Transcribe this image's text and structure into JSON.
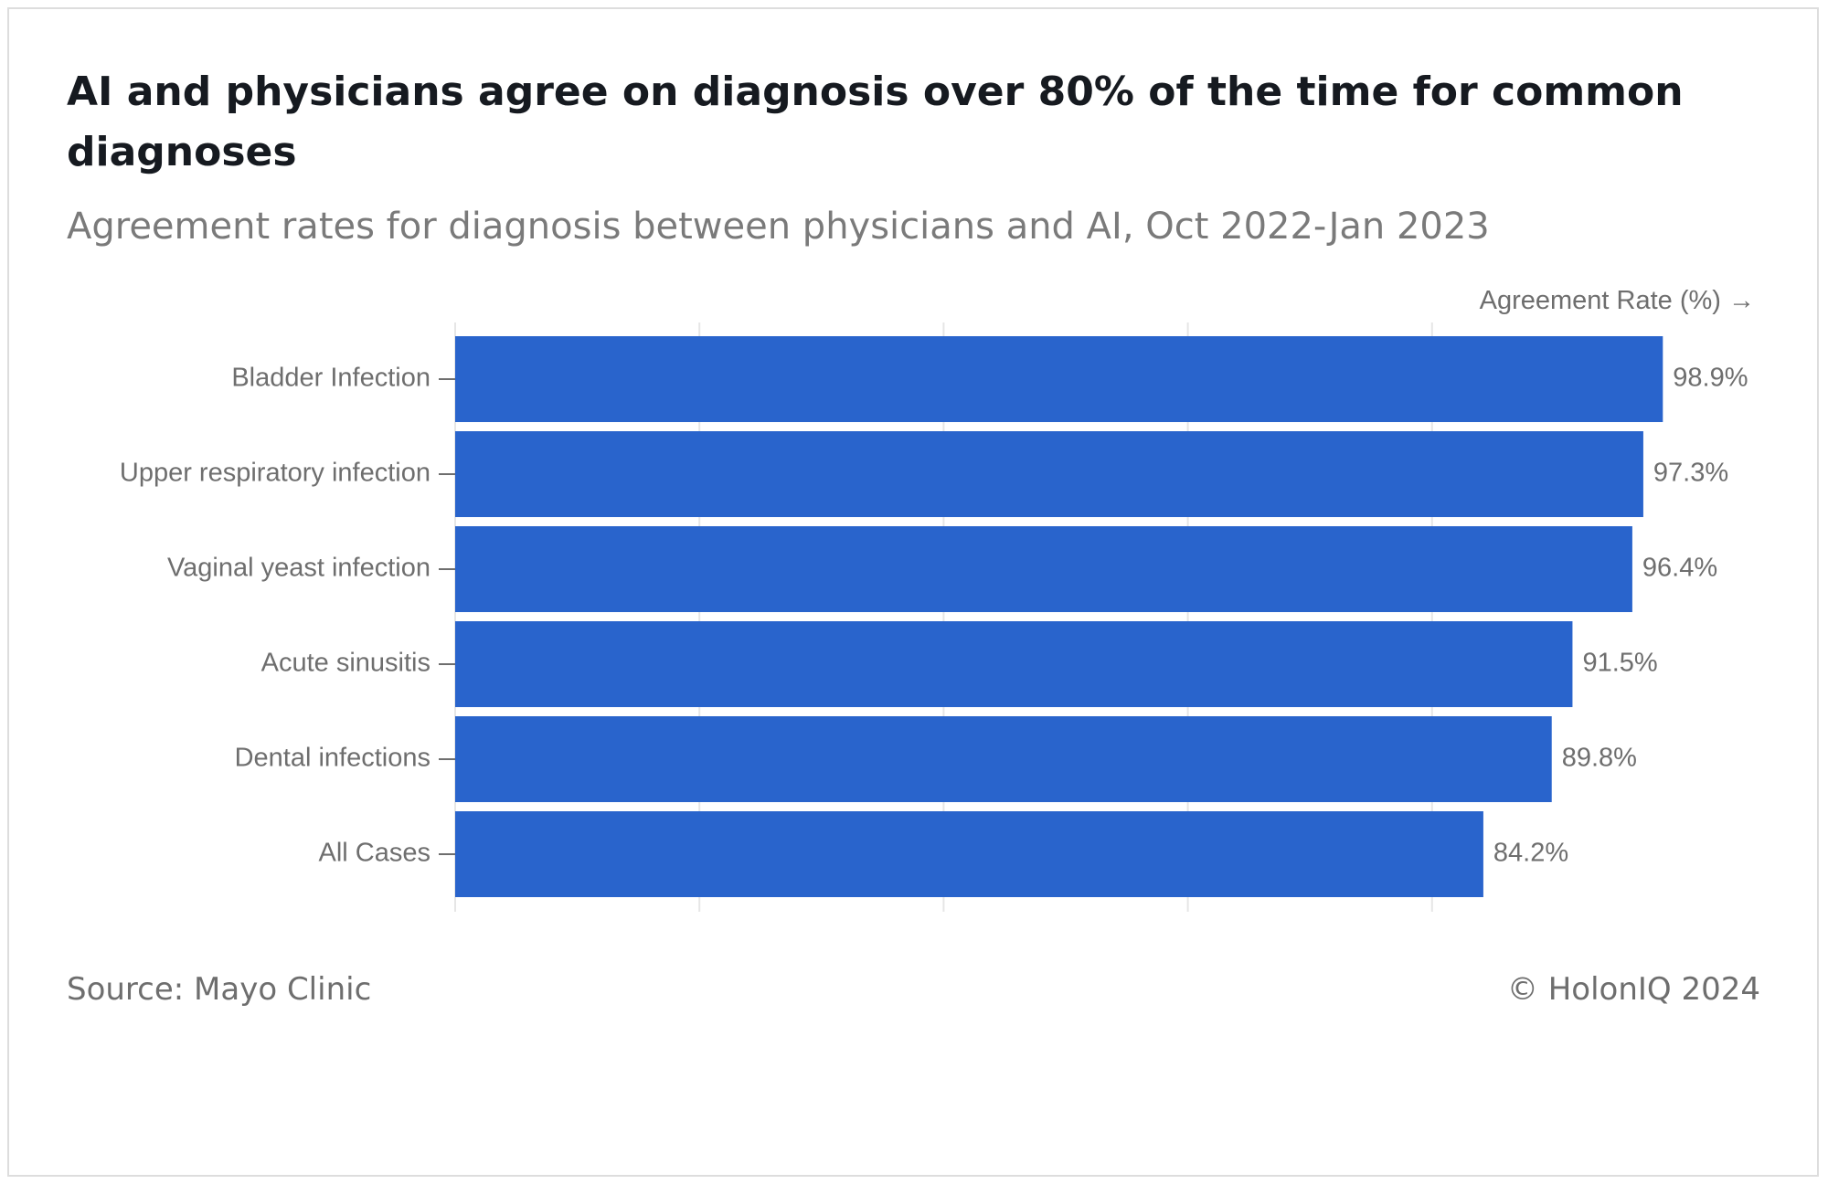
{
  "header": {
    "title": "AI and physicians agree on diagnosis over 80% of the time for common diagnoses",
    "subtitle": "Agreement rates for diagnosis between physicians and AI, Oct 2022-Jan 2023"
  },
  "footer": {
    "source": "Source: Mayo Clinic",
    "copyright": "© HolonIQ 2024"
  },
  "chart_data": {
    "type": "bar",
    "orientation": "horizontal",
    "title": "AI and physicians agree on diagnosis over 80% of the time for common diagnoses",
    "subtitle": "Agreement rates for diagnosis between physicians and AI, Oct 2022-Jan 2023",
    "xlabel": "Agreement Rate (%) →",
    "ylabel": "",
    "xlim": [
      0,
      100
    ],
    "grid": true,
    "categories": [
      "Bladder Infection",
      "Upper respiratory infection",
      "Vaginal yeast infection",
      "Acute sinusitis",
      "Dental infections",
      "All Cases"
    ],
    "values": [
      98.9,
      97.3,
      96.4,
      91.5,
      89.8,
      84.2
    ],
    "value_labels": [
      "98.9%",
      "97.3%",
      "96.4%",
      "91.5%",
      "89.8%",
      "84.2%"
    ],
    "bar_color": "#2964cc",
    "gridline_color": "#e6e6e6"
  }
}
